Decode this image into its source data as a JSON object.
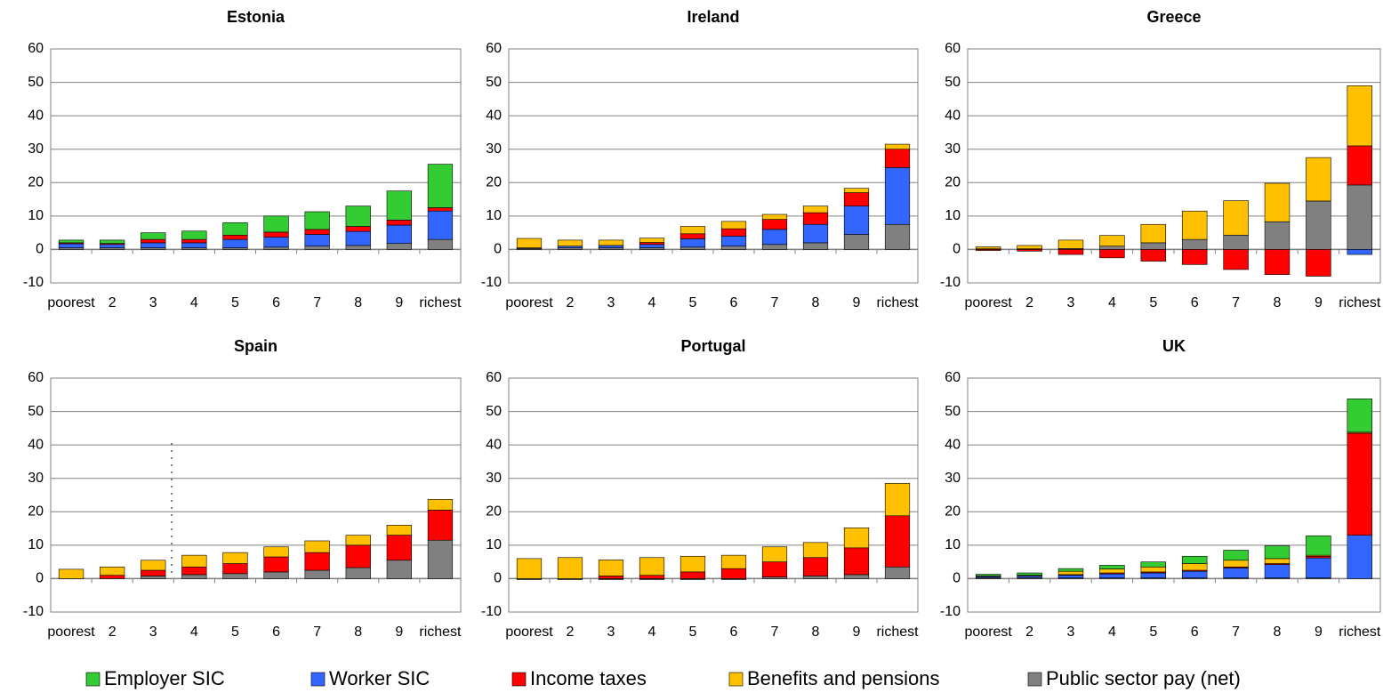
{
  "chart_data": [
    {
      "type": "bar",
      "title": "Estonia",
      "categories": [
        "poorest",
        "2",
        "3",
        "4",
        "5",
        "6",
        "7",
        "8",
        "9",
        "richest"
      ],
      "series": [
        {
          "name": "Public sector pay (net)",
          "color": "#808080",
          "values": [
            0.5,
            0.5,
            0.5,
            0.5,
            0.5,
            0.7,
            1,
            1.2,
            1.8,
            3
          ]
        },
        {
          "name": "Worker SIC",
          "color": "#3366ff",
          "values": [
            1.2,
            1,
            1.5,
            1.5,
            2.5,
            3,
            3.5,
            4.2,
            5.5,
            8.5
          ]
        },
        {
          "name": "Income taxes",
          "color": "#ff0000",
          "values": [
            0.3,
            0.3,
            1,
            1,
            1.3,
            1.5,
            1.5,
            1.5,
            1.5,
            1
          ]
        },
        {
          "name": "Benefits and pensions",
          "color": "#ffc000",
          "values": [
            0,
            0,
            0,
            0,
            0,
            0,
            0,
            0,
            0,
            0
          ]
        },
        {
          "name": "Employer SIC",
          "color": "#33cc33",
          "values": [
            0.8,
            1,
            2,
            2.5,
            3.7,
            4.8,
            5.3,
            6.1,
            8.7,
            13
          ]
        }
      ],
      "ylim": [
        -10,
        60
      ],
      "yticks": [
        -10,
        0,
        10,
        20,
        30,
        40,
        50,
        60
      ],
      "grid": true
    },
    {
      "type": "bar",
      "title": "Ireland",
      "categories": [
        "poorest",
        "2",
        "3",
        "4",
        "5",
        "6",
        "7",
        "8",
        "9",
        "richest"
      ],
      "series": [
        {
          "name": "Public sector pay (net)",
          "color": "#808080",
          "values": [
            0.3,
            0.5,
            0.5,
            0.5,
            0.7,
            1,
            1.5,
            2,
            4.5,
            7.5
          ]
        },
        {
          "name": "Worker SIC",
          "color": "#3366ff",
          "values": [
            0.2,
            0.5,
            0.7,
            1,
            2.5,
            3,
            4.5,
            5.5,
            8.5,
            17
          ]
        },
        {
          "name": "Income taxes",
          "color": "#ff0000",
          "values": [
            0,
            0,
            0,
            0.6,
            1.5,
            2.2,
            3,
            3.5,
            4,
            5.5
          ]
        },
        {
          "name": "Benefits and pensions",
          "color": "#ffc000",
          "values": [
            2.8,
            1.8,
            1.6,
            1.3,
            2.2,
            2.2,
            1.5,
            2,
            1.3,
            1.5
          ]
        },
        {
          "name": "Employer SIC",
          "color": "#33cc33",
          "values": [
            0,
            0,
            0,
            0,
            0,
            0,
            0,
            0,
            0,
            0
          ]
        }
      ],
      "ylim": [
        -10,
        60
      ],
      "yticks": [
        -10,
        0,
        10,
        20,
        30,
        40,
        50,
        60
      ],
      "grid": true
    },
    {
      "type": "bar",
      "title": "Greece",
      "categories": [
        "poorest",
        "2",
        "3",
        "4",
        "5",
        "6",
        "7",
        "8",
        "9",
        "richest"
      ],
      "series": [
        {
          "name": "Public sector pay (net)",
          "color": "#808080",
          "values": [
            0.2,
            0.2,
            0.3,
            1,
            2,
            3,
            4.3,
            8.3,
            14.5,
            19.3
          ]
        },
        {
          "name": "Worker SIC",
          "color": "#3366ff",
          "values": [
            0,
            0,
            0,
            0,
            0,
            0,
            0,
            0,
            0,
            -1.5
          ]
        },
        {
          "name": "Income taxes",
          "color": "#ff0000",
          "values": [
            -0.3,
            -0.5,
            -1.5,
            -2.5,
            -3.5,
            -4.5,
            -6,
            -7.5,
            -8,
            11.7
          ]
        },
        {
          "name": "Benefits and pensions",
          "color": "#ffc000",
          "values": [
            0.6,
            1,
            2.5,
            3.2,
            5.5,
            8.5,
            10.3,
            11.5,
            13,
            18
          ]
        },
        {
          "name": "Employer SIC",
          "color": "#33cc33",
          "values": [
            0,
            0,
            0,
            0,
            0,
            0,
            0,
            0,
            0,
            0
          ]
        }
      ],
      "ylim": [
        -10,
        60
      ],
      "yticks": [
        -10,
        0,
        10,
        20,
        30,
        40,
        50,
        60
      ],
      "grid": true
    },
    {
      "type": "bar",
      "title": "Spain",
      "categories": [
        "poorest",
        "2",
        "3",
        "4",
        "5",
        "6",
        "7",
        "8",
        "9",
        "richest"
      ],
      "series": [
        {
          "name": "Public sector pay (net)",
          "color": "#808080",
          "values": [
            0,
            0,
            0.8,
            1.2,
            1.5,
            2,
            2.5,
            3.3,
            5.5,
            11.5
          ]
        },
        {
          "name": "Worker SIC",
          "color": "#3366ff",
          "values": [
            0,
            0,
            0,
            0,
            0,
            0,
            0,
            0,
            0,
            0
          ]
        },
        {
          "name": "Income taxes",
          "color": "#ff0000",
          "values": [
            0,
            1,
            1.7,
            2.3,
            3,
            4.5,
            5.3,
            6.7,
            7.5,
            9
          ]
        },
        {
          "name": "Benefits and pensions",
          "color": "#ffc000",
          "values": [
            2.8,
            2.5,
            3,
            3.5,
            3.3,
            3,
            3.5,
            3,
            3,
            3.2
          ]
        },
        {
          "name": "Employer SIC",
          "color": "#33cc33",
          "values": [
            0,
            0,
            0,
            0,
            0,
            0,
            0,
            0,
            0,
            0
          ]
        }
      ],
      "ylim": [
        -10,
        60
      ],
      "yticks": [
        -10,
        0,
        10,
        20,
        30,
        40,
        50,
        60
      ],
      "grid": true
    },
    {
      "type": "bar",
      "title": "Portugal",
      "categories": [
        "poorest",
        "2",
        "3",
        "4",
        "5",
        "6",
        "7",
        "8",
        "9",
        "richest"
      ],
      "series": [
        {
          "name": "Public sector pay (net)",
          "color": "#808080",
          "values": [
            -0.3,
            -0.3,
            -0.3,
            -0.3,
            -0.3,
            -0.3,
            0.5,
            0.8,
            1.2,
            3.5
          ]
        },
        {
          "name": "Worker SIC",
          "color": "#3366ff",
          "values": [
            0,
            0,
            0,
            0,
            0,
            0,
            0,
            0,
            0,
            0
          ]
        },
        {
          "name": "Income taxes",
          "color": "#ff0000",
          "values": [
            0,
            0,
            0.8,
            1,
            2,
            3,
            4.5,
            5.5,
            8,
            15.3
          ]
        },
        {
          "name": "Benefits and pensions",
          "color": "#ffc000",
          "values": [
            6,
            6.3,
            4.8,
            5.3,
            4.7,
            4,
            4.5,
            4.5,
            6,
            9.7
          ]
        },
        {
          "name": "Employer SIC",
          "color": "#33cc33",
          "values": [
            0,
            0,
            0,
            0,
            0,
            0,
            0,
            0,
            0,
            0
          ]
        }
      ],
      "ylim": [
        -10,
        60
      ],
      "yticks": [
        -10,
        0,
        10,
        20,
        30,
        40,
        50,
        60
      ],
      "grid": true
    },
    {
      "type": "bar",
      "title": "UK",
      "categories": [
        "poorest",
        "2",
        "3",
        "4",
        "5",
        "6",
        "7",
        "8",
        "9",
        "richest"
      ],
      "series": [
        {
          "name": "Public sector pay (net)",
          "color": "#808080",
          "values": [
            0.3,
            0.3,
            0.2,
            0.2,
            0.2,
            0.2,
            0.2,
            0.2,
            0.2,
            0
          ]
        },
        {
          "name": "Worker SIC",
          "color": "#3366ff",
          "values": [
            0.3,
            0.5,
            0.8,
            1.2,
            1.5,
            2,
            3,
            4,
            6,
            13
          ]
        },
        {
          "name": "Income taxes",
          "color": "#ff0000",
          "values": [
            0.2,
            0.2,
            0.2,
            0.3,
            0.3,
            0.3,
            0.3,
            0.3,
            0.5,
            30.5
          ]
        },
        {
          "name": "Benefits and pensions",
          "color": "#ffc000",
          "values": [
            0,
            0,
            1,
            1.2,
            1.5,
            2,
            2,
            1.5,
            0.3,
            0.3
          ]
        },
        {
          "name": "Employer SIC",
          "color": "#33cc33",
          "values": [
            0.5,
            0.7,
            0.8,
            1.1,
            1.5,
            2.2,
            3,
            3.8,
            5.8,
            10
          ]
        }
      ],
      "ylim": [
        -10,
        60
      ],
      "yticks": [
        -10,
        0,
        10,
        20,
        30,
        40,
        50,
        60
      ],
      "grid": true
    }
  ]
}
